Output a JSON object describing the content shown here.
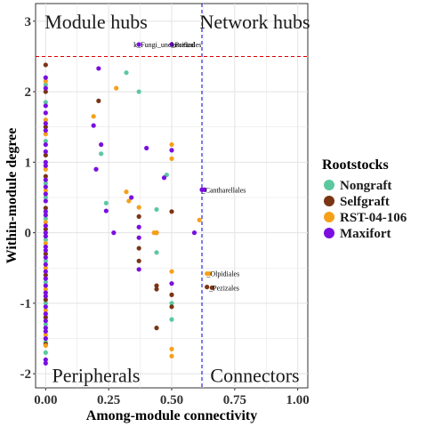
{
  "chart_data": {
    "type": "scatter",
    "title": "",
    "xlabel": "Among-module connectivity",
    "ylabel": "Within-module degree",
    "xlim": [
      -0.04,
      1.04
    ],
    "ylim": [
      -2.2,
      3.25
    ],
    "x_ticks": [
      0.0,
      0.25,
      0.5,
      0.75,
      1.0
    ],
    "x_tick_labels": [
      "0.00",
      "0.25",
      "0.50",
      "0.75",
      "1.00"
    ],
    "y_ticks": [
      -2,
      -1,
      0,
      1,
      2,
      3
    ],
    "y_tick_labels": [
      "-2",
      "-1",
      "0",
      "1",
      "2",
      "3"
    ],
    "grid": true,
    "thresholds": {
      "x": 0.62,
      "y": 2.5
    },
    "threshold_colors": {
      "x": "#0000cc",
      "y": "#dd0000"
    },
    "quadrant_labels": [
      {
        "text": "Module hubs",
        "x": 0.2,
        "y": 3.0
      },
      {
        "text": "Network hubs",
        "x": 0.83,
        "y": 3.0
      },
      {
        "text": "Peripherals",
        "x": 0.2,
        "y": -2.02
      },
      {
        "text": "Connectors",
        "x": 0.83,
        "y": -2.02
      }
    ],
    "legend": {
      "title": "Rootstocks",
      "placement": "right",
      "entries": [
        "Nongraft",
        "Selfgraft",
        "RST-04-106",
        "Maxifort"
      ]
    },
    "series": [
      {
        "name": "Nongraft",
        "color": "#5cc8a0",
        "points": [
          [
            0,
            1.6
          ],
          [
            0,
            1.3
          ],
          [
            0,
            0.7
          ],
          [
            0,
            0.5
          ],
          [
            0,
            0.2
          ],
          [
            0,
            -0.1
          ],
          [
            0,
            -0.4
          ],
          [
            0,
            -0.7
          ],
          [
            0,
            -1.0
          ],
          [
            0,
            -1.3
          ],
          [
            0,
            -1.7
          ],
          [
            0,
            2.1
          ],
          [
            0,
            1.85
          ],
          [
            0,
            -1.55
          ],
          [
            0.22,
            1.12
          ],
          [
            0.24,
            0.42
          ],
          [
            0.32,
            2.27
          ],
          [
            0.37,
            2.0
          ],
          [
            0.44,
            0.33
          ],
          [
            0.44,
            -0.28
          ],
          [
            0.48,
            0.82
          ],
          [
            0.5,
            -1.0
          ],
          [
            0.5,
            -1.23
          ]
        ]
      },
      {
        "name": "Selfgraft",
        "color": "#7a3515",
        "points": [
          [
            0,
            2.38
          ],
          [
            0,
            2.0
          ],
          [
            0,
            1.5
          ],
          [
            0,
            1.1
          ],
          [
            0,
            0.8
          ],
          [
            0,
            0.35
          ],
          [
            0,
            0.05
          ],
          [
            0,
            -0.3
          ],
          [
            0,
            -0.6
          ],
          [
            0,
            -0.95
          ],
          [
            0,
            -1.2
          ],
          [
            0,
            -1.58
          ],
          [
            0.21,
            1.87
          ],
          [
            0.37,
            0.23
          ],
          [
            0.37,
            -0.22
          ],
          [
            0.37,
            -0.4
          ],
          [
            0.44,
            0.0
          ],
          [
            0.44,
            -0.75
          ],
          [
            0.44,
            -0.8
          ],
          [
            0.44,
            -1.35
          ],
          [
            0.5,
            0.3
          ],
          [
            0.5,
            -0.88
          ],
          [
            0.5,
            -1.05
          ],
          [
            0.64,
            -0.77
          ],
          [
            0.66,
            -0.78
          ]
        ]
      },
      {
        "name": "RST-04-106",
        "color": "#f5a01a",
        "points": [
          [
            0,
            2.15
          ],
          [
            0,
            1.6
          ],
          [
            0,
            1.4
          ],
          [
            0,
            0.9
          ],
          [
            0,
            0.6
          ],
          [
            0,
            0.15
          ],
          [
            0,
            -0.15
          ],
          [
            0,
            -0.5
          ],
          [
            0,
            -0.8
          ],
          [
            0,
            -1.1
          ],
          [
            0,
            -1.45
          ],
          [
            0,
            -1.6
          ],
          [
            0.19,
            1.65
          ],
          [
            0.28,
            2.05
          ],
          [
            0.32,
            0.58
          ],
          [
            0.33,
            0.45
          ],
          [
            0.37,
            0.36
          ],
          [
            0.43,
            0.0
          ],
          [
            0.44,
            0.0
          ],
          [
            0.5,
            1.25
          ],
          [
            0.5,
            1.05
          ],
          [
            0.5,
            -0.55
          ],
          [
            0.5,
            -1.65
          ],
          [
            0.5,
            -1.75
          ],
          [
            0.61,
            0.18
          ],
          [
            0.64,
            -0.58
          ],
          [
            0.65,
            -0.58
          ]
        ]
      },
      {
        "name": "Maxifort",
        "color": "#7a0fe0",
        "points": [
          [
            0,
            2.2
          ],
          [
            0,
            2.05
          ],
          [
            0,
            1.8
          ],
          [
            0,
            1.7
          ],
          [
            0,
            1.55
          ],
          [
            0,
            1.45
          ],
          [
            0,
            1.25
          ],
          [
            0,
            1.15
          ],
          [
            0,
            1.0
          ],
          [
            0,
            0.95
          ],
          [
            0,
            0.75
          ],
          [
            0,
            0.65
          ],
          [
            0,
            0.55
          ],
          [
            0,
            0.45
          ],
          [
            0,
            0.3
          ],
          [
            0,
            0.25
          ],
          [
            0,
            0.1
          ],
          [
            0,
            0.0
          ],
          [
            0,
            -0.05
          ],
          [
            0,
            -0.2
          ],
          [
            0,
            -0.25
          ],
          [
            0,
            -0.35
          ],
          [
            0,
            -0.45
          ],
          [
            0,
            -0.55
          ],
          [
            0,
            -0.65
          ],
          [
            0,
            -0.75
          ],
          [
            0,
            -0.85
          ],
          [
            0,
            -0.9
          ],
          [
            0,
            -1.05
          ],
          [
            0,
            -1.15
          ],
          [
            0,
            -1.25
          ],
          [
            0,
            -1.35
          ],
          [
            0,
            -1.4
          ],
          [
            0,
            -1.5
          ],
          [
            0,
            -1.8
          ],
          [
            0,
            -1.85
          ],
          [
            0.19,
            1.52
          ],
          [
            0.2,
            0.9
          ],
          [
            0.21,
            2.33
          ],
          [
            0.22,
            1.25
          ],
          [
            0.24,
            0.31
          ],
          [
            0.27,
            0.0
          ],
          [
            0.34,
            0.5
          ],
          [
            0.37,
            2.67
          ],
          [
            0.37,
            0.08
          ],
          [
            0.37,
            -0.07
          ],
          [
            0.37,
            -0.52
          ],
          [
            0.4,
            1.2
          ],
          [
            0.47,
            0.78
          ],
          [
            0.5,
            2.67
          ],
          [
            0.5,
            1.17
          ],
          [
            0.5,
            -0.72
          ],
          [
            0.59,
            0.0
          ],
          [
            0.62,
            0.61
          ],
          [
            0.63,
            0.61
          ]
        ]
      }
    ],
    "annotations": [
      {
        "text": "k_Fungi_unclassified",
        "x": 0.37,
        "y": 2.67
      },
      {
        "text": "_Pezizales",
        "x": 0.52,
        "y": 2.67
      },
      {
        "text": "_Cantharellales",
        "x": 0.64,
        "y": 0.61
      },
      {
        "text": "_Olpidiales",
        "x": 0.66,
        "y": -0.58
      },
      {
        "text": "_Pezizales",
        "x": 0.67,
        "y": -0.78
      }
    ]
  }
}
